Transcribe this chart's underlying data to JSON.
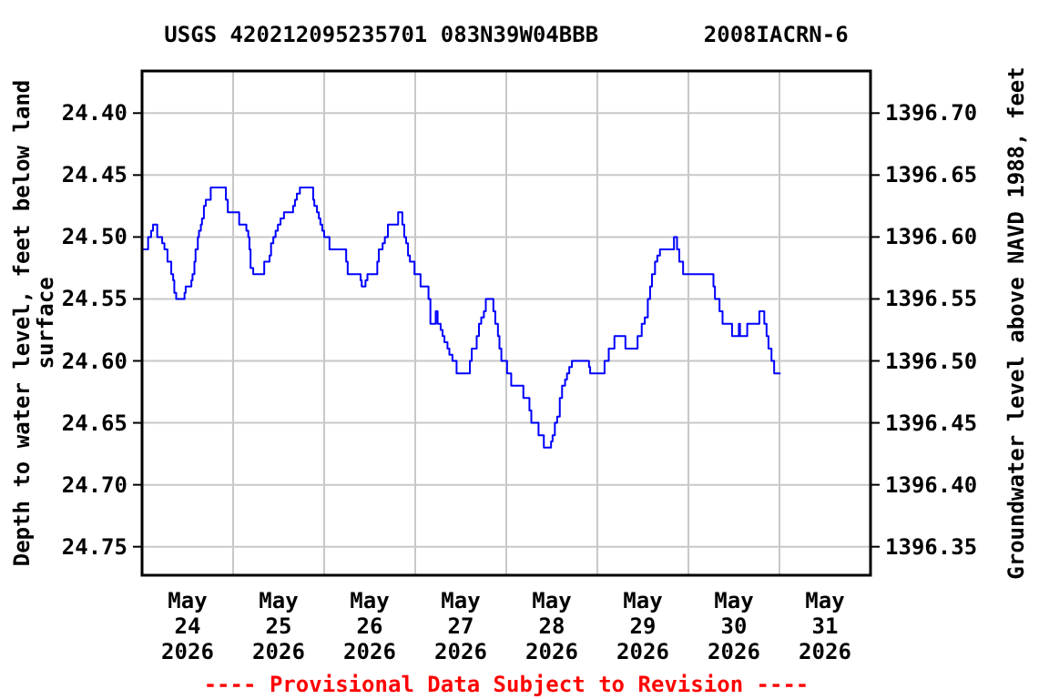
{
  "chart_data": {
    "type": "step",
    "title": "USGS 420212095235701 083N39W04BBB        2008IACRN-6",
    "ylabel": "Depth to water level, feet below land surface",
    "y2label": "Groundwater level above NAVD 1988, feet",
    "annotations": [
      "---- Provisional Data Subject to Revision ----"
    ],
    "xlim": [
      "2026-05-24",
      "2026-06-01"
    ],
    "xticks": [
      {
        "value": "2026-05-24",
        "label": null
      },
      {
        "value": "2026-05-25",
        "label": null
      },
      {
        "value": "2026-05-26",
        "label": null
      },
      {
        "value": "2026-05-27",
        "label": null
      },
      {
        "value": "2026-05-28",
        "label": null
      },
      {
        "value": "2026-05-29",
        "label": null
      },
      {
        "value": "2026-05-30",
        "label": null
      },
      {
        "value": "2026-05-31",
        "label": null
      },
      {
        "value": "2026-05-24T12:00",
        "label": "May 24 2026"
      },
      {
        "value": "2026-05-25T12:00",
        "label": "May 25 2026"
      },
      {
        "value": "2026-05-26T12:00",
        "label": "May 26 2026"
      },
      {
        "value": "2026-05-27T12:00",
        "label": "May 27 2026"
      },
      {
        "value": "2026-05-28T12:00",
        "label": "May 28 2026"
      },
      {
        "value": "2026-05-29T12:00",
        "label": "May 29 2026"
      },
      {
        "value": "2026-05-30T12:00",
        "label": "May 30 2026"
      },
      {
        "value": "2026-05-31T12:00",
        "label": "May 31 2026"
      }
    ],
    "ylim": [
      24.773,
      24.366
    ],
    "yticks": [
      {
        "value": 24.4,
        "label": "24.40"
      },
      {
        "value": 24.45,
        "label": "24.45"
      },
      {
        "value": 24.5,
        "label": "24.50"
      },
      {
        "value": 24.55,
        "label": "24.55"
      },
      {
        "value": 24.6,
        "label": "24.60"
      },
      {
        "value": 24.65,
        "label": "24.65"
      },
      {
        "value": 24.7,
        "label": "24.70"
      },
      {
        "value": 24.75,
        "label": "24.75"
      }
    ],
    "y2lim": [
      1396.327,
      1396.734
    ],
    "y2ticks": [
      {
        "value": 1396.7,
        "label": "1396.70"
      },
      {
        "value": 1396.65,
        "label": "1396.65"
      },
      {
        "value": 1396.6,
        "label": "1396.60"
      },
      {
        "value": 1396.55,
        "label": "1396.55"
      },
      {
        "value": 1396.5,
        "label": "1396.50"
      },
      {
        "value": 1396.45,
        "label": "1396.45"
      },
      {
        "value": 1396.4,
        "label": "1396.40"
      },
      {
        "value": 1396.35,
        "label": "1396.35"
      }
    ],
    "grid": true,
    "series": [
      {
        "color": "#0000ff",
        "x": [
          "2026-05-24T00:00",
          "2026-05-24T01:36",
          "2026-05-24T02:24",
          "2026-05-24T02:54",
          "2026-05-24T04:00",
          "2026-05-24T05:18",
          "2026-05-24T05:54",
          "2026-05-24T06:42",
          "2026-05-24T07:42",
          "2026-05-24T08:12",
          "2026-05-24T08:30",
          "2026-05-24T09:00",
          "2026-05-24T11:12",
          "2026-05-24T11:30",
          "2026-05-24T13:00",
          "2026-05-24T13:18",
          "2026-05-24T13:48",
          "2026-05-24T14:06",
          "2026-05-24T14:42",
          "2026-05-24T15:00",
          "2026-05-24T15:30",
          "2026-05-24T15:48",
          "2026-05-24T16:18",
          "2026-05-24T16:48",
          "2026-05-24T18:06",
          "2026-05-24T22:06",
          "2026-05-24T22:36",
          "2026-05-25T01:36",
          "2026-05-25T03:30",
          "2026-05-25T04:00",
          "2026-05-25T04:18",
          "2026-05-25T04:36",
          "2026-05-25T05:18",
          "2026-05-25T08:12",
          "2026-05-25T09:36",
          "2026-05-25T10:00",
          "2026-05-25T10:36",
          "2026-05-25T11:12",
          "2026-05-25T11:48",
          "2026-05-25T12:30",
          "2026-05-25T13:24",
          "2026-05-25T15:48",
          "2026-05-25T16:18",
          "2026-05-25T16:48",
          "2026-05-25T17:36",
          "2026-05-25T21:06",
          "2026-05-25T21:24",
          "2026-05-25T22:06",
          "2026-05-25T22:36",
          "2026-05-25T23:00",
          "2026-05-25T23:30",
          "2026-05-26T00:00",
          "2026-05-26T01:24",
          "2026-05-26T05:48",
          "2026-05-26T06:12",
          "2026-05-26T09:36",
          "2026-05-26T09:54",
          "2026-05-26T10:54",
          "2026-05-26T11:24",
          "2026-05-26T14:00",
          "2026-05-26T14:24",
          "2026-05-26T15:24",
          "2026-05-26T16:00",
          "2026-05-26T16:48",
          "2026-05-26T19:30",
          "2026-05-26T20:36",
          "2026-05-26T21:06",
          "2026-05-26T21:36",
          "2026-05-26T22:06",
          "2026-05-26T22:36",
          "2026-05-26T23:48",
          "2026-05-27T01:24",
          "2026-05-27T03:30",
          "2026-05-27T04:00",
          "2026-05-27T05:24",
          "2026-05-27T05:54",
          "2026-05-27T06:42",
          "2026-05-27T07:12",
          "2026-05-27T07:42",
          "2026-05-27T08:30",
          "2026-05-27T09:00",
          "2026-05-27T09:48",
          "2026-05-27T10:54",
          "2026-05-27T14:24",
          "2026-05-27T14:54",
          "2026-05-27T16:12",
          "2026-05-27T16:48",
          "2026-05-27T17:24",
          "2026-05-27T18:06",
          "2026-05-27T18:36",
          "2026-05-27T20:36",
          "2026-05-27T21:06",
          "2026-05-27T21:48",
          "2026-05-27T22:12",
          "2026-05-27T22:42",
          "2026-05-28T00:12",
          "2026-05-28T01:18",
          "2026-05-28T04:30",
          "2026-05-28T06:06",
          "2026-05-28T06:36",
          "2026-05-28T08:30",
          "2026-05-28T09:54",
          "2026-05-28T11:48",
          "2026-05-28T12:12",
          "2026-05-28T12:48",
          "2026-05-28T13:24",
          "2026-05-28T14:06",
          "2026-05-28T14:42",
          "2026-05-28T15:30",
          "2026-05-28T16:00",
          "2026-05-28T16:36",
          "2026-05-28T17:18",
          "2026-05-28T21:48",
          "2026-05-28T22:06",
          "2026-05-29T01:54",
          "2026-05-29T03:00",
          "2026-05-29T04:30",
          "2026-05-29T07:24",
          "2026-05-29T10:36",
          "2026-05-29T11:42",
          "2026-05-29T12:30",
          "2026-05-29T13:18",
          "2026-05-29T13:54",
          "2026-05-29T14:24",
          "2026-05-29T15:12",
          "2026-05-29T15:48",
          "2026-05-29T16:30",
          "2026-05-29T20:12",
          "2026-05-29T21:00",
          "2026-05-29T21:36",
          "2026-05-29T22:36",
          "2026-05-30T06:36",
          "2026-05-30T07:00",
          "2026-05-30T08:12",
          "2026-05-30T09:00",
          "2026-05-30T11:30",
          "2026-05-30T13:18",
          "2026-05-30T13:36",
          "2026-05-30T15:30",
          "2026-05-30T18:42",
          "2026-05-30T20:00",
          "2026-05-30T20:36",
          "2026-05-30T21:06",
          "2026-05-30T21:54",
          "2026-05-30T22:36",
          "2026-05-31T00:18"
        ],
        "values": [
          24.51,
          24.5,
          24.495,
          24.49,
          24.5,
          24.505,
          24.51,
          24.52,
          24.53,
          24.535,
          24.545,
          24.55,
          24.545,
          24.54,
          24.535,
          24.53,
          24.52,
          24.51,
          24.5,
          24.495,
          24.49,
          24.485,
          24.475,
          24.47,
          24.46,
          24.47,
          24.48,
          24.49,
          24.495,
          24.5,
          24.51,
          24.525,
          24.53,
          24.52,
          24.515,
          24.505,
          24.5,
          24.495,
          24.49,
          24.485,
          24.48,
          24.475,
          24.47,
          24.465,
          24.46,
          24.47,
          24.475,
          24.48,
          24.485,
          24.49,
          24.495,
          24.5,
          24.51,
          24.52,
          24.53,
          24.535,
          24.54,
          24.535,
          24.53,
          24.52,
          24.51,
          24.505,
          24.5,
          24.49,
          24.48,
          24.49,
          24.5,
          24.505,
          24.515,
          24.52,
          24.53,
          24.54,
          24.55,
          24.57,
          24.56,
          24.57,
          24.575,
          24.58,
          24.585,
          24.59,
          24.595,
          24.6,
          24.61,
          24.6,
          24.59,
          24.58,
          24.57,
          24.565,
          24.56,
          24.55,
          24.56,
          24.57,
          24.58,
          24.59,
          24.6,
          24.61,
          24.62,
          24.63,
          24.64,
          24.65,
          24.66,
          24.67,
          24.665,
          24.66,
          24.65,
          24.645,
          24.63,
          24.62,
          24.615,
          24.61,
          24.605,
          24.6,
          24.605,
          24.61,
          24.6,
          24.59,
          24.58,
          24.59,
          24.58,
          24.57,
          24.565,
          24.55,
          24.54,
          24.53,
          24.52,
          24.515,
          24.51,
          24.5,
          24.51,
          24.52,
          24.53,
          24.54,
          24.55,
          24.56,
          24.57,
          24.58,
          24.57,
          24.58,
          24.57,
          24.56,
          24.57,
          24.58,
          24.59,
          24.6,
          24.61,
          24.61
        ]
      }
    ]
  }
}
